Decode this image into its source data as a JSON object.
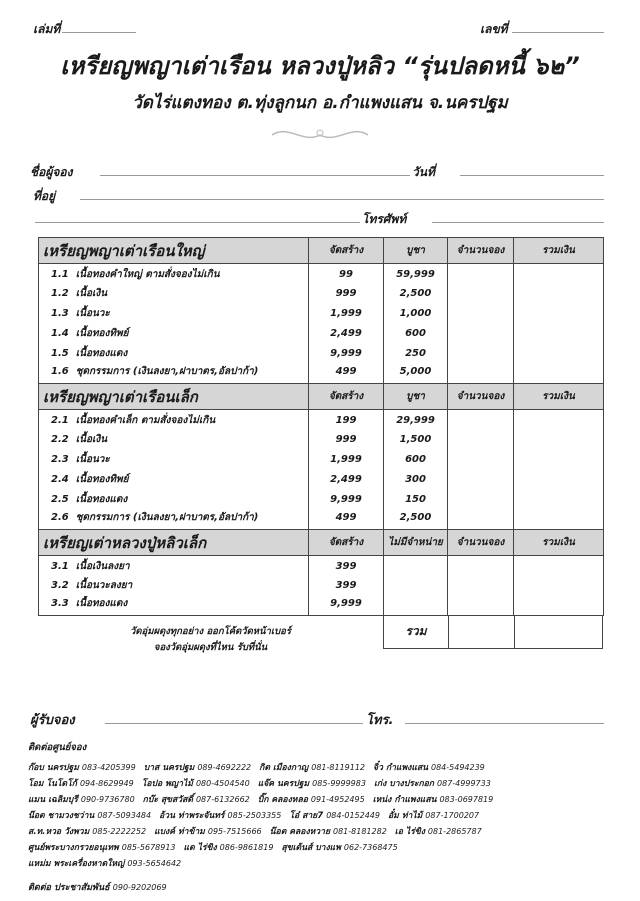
{
  "header": {
    "book_no_label": "เล่มที่",
    "no_label": "เลขที่",
    "title": "เหรียญพญาเต่าเรือน หลวงปู่หลิว “รุ่นปลดหนี้ ๖๒”",
    "subtitle": "วัดไร่แตงทอง ต.ทุ่งลูกนก อ.กำแพงแสน จ.นครปฐม"
  },
  "form": {
    "name_label": "ชื่อผู้จอง",
    "date_label": "วันที่",
    "address_label": "ที่อยู่",
    "phone_label": "โทรศัพท์"
  },
  "sections": [
    {
      "title": "เหรียญพญาเต่าเรือนใหญ่",
      "cols": [
        "จัดสร้าง",
        "บูชา",
        "จำนวนจอง",
        "รวมเงิน"
      ],
      "items": [
        {
          "no": "1.1",
          "name": "เนื้อทองคำใหญ่ ตามสั่งจองไม่เกิน",
          "made": "99",
          "price": "59,999"
        },
        {
          "no": "1.2",
          "name": "เนื้อเงิน",
          "made": "999",
          "price": "2,500"
        },
        {
          "no": "1.3",
          "name": "เนื้อนวะ",
          "made": "1,999",
          "price": "1,000"
        },
        {
          "no": "1.4",
          "name": "เนื้อทองทิพย์",
          "made": "2,499",
          "price": "600"
        },
        {
          "no": "1.5",
          "name": "เนื้อทองแดง",
          "made": "9,999",
          "price": "250"
        },
        {
          "no": "1.6",
          "name": "ชุดกรรมการ (เงินลงยา,ฝาบาตร,อัลปาก้า)",
          "made": "499",
          "price": "5,000"
        }
      ]
    },
    {
      "title": "เหรียญพญาเต่าเรือนเล็ก",
      "cols": [
        "จัดสร้าง",
        "บูชา",
        "จำนวนจอง",
        "รวมเงิน"
      ],
      "items": [
        {
          "no": "2.1",
          "name": "เนื้อทองคำเล็ก ตามสั่งจองไม่เกิน",
          "made": "199",
          "price": "29,999"
        },
        {
          "no": "2.2",
          "name": "เนื้อเงิน",
          "made": "999",
          "price": "1,500"
        },
        {
          "no": "2.3",
          "name": "เนื้อนวะ",
          "made": "1,999",
          "price": "600"
        },
        {
          "no": "2.4",
          "name": "เนื้อทองทิพย์",
          "made": "2,499",
          "price": "300"
        },
        {
          "no": "2.5",
          "name": "เนื้อทองแดง",
          "made": "9,999",
          "price": "150"
        },
        {
          "no": "2.6",
          "name": "ชุดกรรมการ (เงินลงยา,ฝาบาตร,อัลปาก้า)",
          "made": "499",
          "price": "2,500"
        }
      ]
    },
    {
      "title": "เหรียญเต่าหลวงปู่หลิวเล็ก",
      "cols": [
        "จัดสร้าง",
        "ไม่มีจำหน่าย",
        "จำนวนจอง",
        "รวมเงิน"
      ],
      "items": [
        {
          "no": "3.1",
          "name": "เนื้อเงินลงยา",
          "made": "399",
          "price": ""
        },
        {
          "no": "3.2",
          "name": "เนื้อนวะลงยา",
          "made": "399",
          "price": ""
        },
        {
          "no": "3.3",
          "name": "เนื้อทองแดง",
          "made": "9,999",
          "price": ""
        }
      ]
    }
  ],
  "note": [
    "วัดอุ่มผดุงทุกอย่าง ออกโค้ดวัดหน้าเบอร์",
    "จองวัดอุ่มผดุงที่ไหน รับที่นั่น"
  ],
  "total_label": "รวม",
  "receiver": {
    "label": "ผู้รับจอง",
    "phone_label": "โทร."
  },
  "contacts_title": "ติดต่อศูนย์จอง",
  "contacts": [
    [
      [
        "ก๊อบ นครปฐม",
        "083-4205399"
      ],
      [
        "บาส นครปฐม",
        "089-4692222"
      ],
      [
        "กิต เมืองกาญ",
        "081-8119112"
      ],
      [
        "จิ๋ว กำแพงแสน",
        "084-5494239"
      ]
    ],
    [
      [
        "โอม โนโดโก้",
        "094-8629949"
      ],
      [
        "โอปอ พญาไม้",
        "080-4504540"
      ],
      [
        "แจ๊ค นครปฐม",
        "085-9999983"
      ],
      [
        "เก่ง บางประกอก",
        "087-4999733"
      ]
    ],
    [
      [
        "แมน เฉลิมบุรี",
        "090-9736780"
      ],
      [
        "กบ๊ะ สุขสวัสดิ์",
        "087-6132662"
      ],
      [
        "บิ๊ก คลองหลอ",
        "091-4952495"
      ],
      [
        "เหน่ง กำแพงแสน",
        "083-0697819"
      ]
    ],
    [
      [
        "น๊อต ชามวงชว่าน",
        "087-5093484"
      ],
      [
        "อ้วน ท่าพระจันทร์",
        "085-2503355"
      ],
      [
        "โอ๋ สาย7",
        "084-0152449"
      ],
      [
        "อั๋ม ท่าไม้",
        "087-1700207"
      ]
    ],
    [
      [
        "ส.ท.หวอ วังพวม",
        "085-2222252"
      ],
      [
        "แบงค์ ท่าข้าม",
        "095-7515666"
      ],
      [
        "น๊อต คลองหวาย",
        "081-8181282"
      ],
      [
        "เอ ไร่ขิง",
        "081-2865787"
      ]
    ],
    [
      [
        "ศูนย์พระบางกรวยอนุเทพ",
        "085-5678913"
      ],
      [
        "แด ไร่ขิง",
        "086-9861819"
      ],
      [
        "สุขเต้นส์ บางแพ",
        "062-7368475"
      ]
    ],
    [
      [
        "แหม่ม พระเครื่องหาดใหญ่",
        "093-5654642"
      ]
    ]
  ],
  "footer": {
    "label": "ติดต่อ ประชาสัมพันธ์",
    "phone": "090-9202069"
  }
}
